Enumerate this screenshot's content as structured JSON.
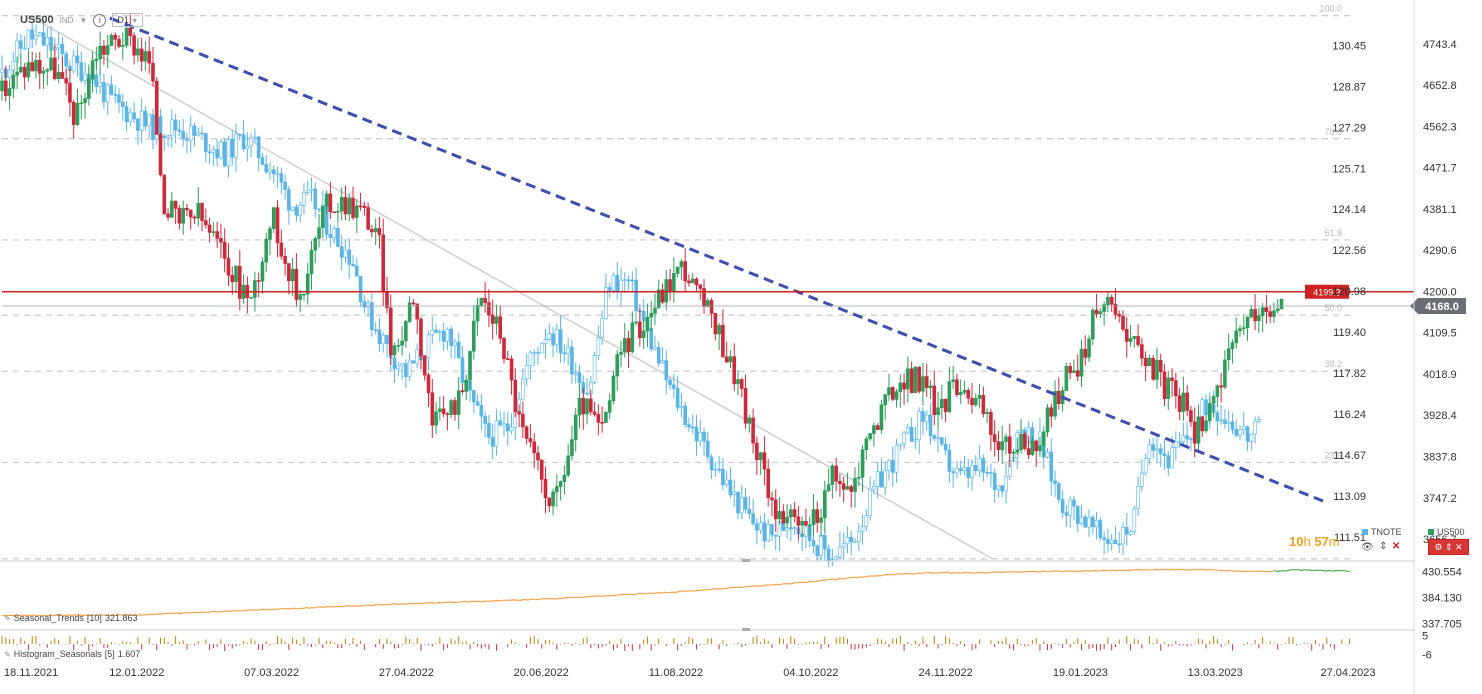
{
  "header": {
    "symbol": "US500",
    "instrument_type": "IND",
    "info_icon": "info-icon",
    "timeframe": "D1"
  },
  "colors": {
    "up": "#2e9c5a",
    "down": "#cc2a3a",
    "tnote": "#5ab4e6",
    "trendline": "#3f4eae",
    "resistance": "#cc2222",
    "fib": "#c8c8c8",
    "trend_orange": "#f4a34a",
    "last_price": "#6a6e76"
  },
  "legend": {
    "tnote_label": "TNOTE",
    "us500_label": "US500"
  },
  "timer": {
    "hours": "10",
    "h_unit": "h",
    "minutes": "57",
    "m_unit": "m"
  },
  "controls": {
    "eye_icon": "eye-icon",
    "arrows_icon": "up-down-arrows-icon",
    "close_icon": "close-icon",
    "settings_icon": "settings-icon"
  },
  "indicators": {
    "seasonal_trends": {
      "label": "Seasonal_Trends",
      "param": "[10]",
      "value": "321.863"
    },
    "histogram_seasonals": {
      "label": "Histogram_Seasonals",
      "param": "[5]",
      "value": "1.607"
    }
  },
  "chart_data": [
    {
      "type": "line",
      "title": "",
      "x_tick_labels": [
        "18.11.2021",
        "12.01.2022",
        "07.03.2022",
        "27.04.2022",
        "20.06.2022",
        "11.08.2022",
        "04.10.2022",
        "24.11.2022",
        "19.01.2023",
        "13.03.2023",
        "27.04.2023"
      ],
      "left_axis": {
        "ticks": [
          "130.45",
          "128.87",
          "127.29",
          "125.71",
          "124.14",
          "122.56",
          "120.98",
          "119.40",
          "117.82",
          "116.24",
          "114.67",
          "113.09",
          "111.51"
        ],
        "range": [
          110.7,
          131.5
        ]
      },
      "right_axis": {
        "ticks": [
          "4743.4",
          "4652.8",
          "4562.3",
          "4471.7",
          "4381.1",
          "4290.6",
          "4200.0",
          "4109.5",
          "4018.9",
          "3928.4",
          "3837.8",
          "3747.2",
          "3656.7"
        ],
        "range": [
          3615,
          4800
        ]
      },
      "fibonacci_levels": [
        {
          "label": "100.0",
          "price": 4805
        },
        {
          "label": "78.6",
          "price": 4535
        },
        {
          "label": "61.8",
          "price": 4313
        },
        {
          "label": "50.0",
          "price": 4148
        },
        {
          "label": "38.2",
          "price": 4025
        },
        {
          "label": "23.6",
          "price": 3825
        },
        {
          "label": "",
          "price": 3613
        }
      ],
      "resistance_line": {
        "price": 4199.3,
        "label": "4199.3"
      },
      "last_price": {
        "price": 4168.0,
        "label": "4168.0"
      },
      "trendline": {
        "from": {
          "x": 0.08,
          "price": 4800
        },
        "to": {
          "x": 0.98,
          "price": 3740
        }
      },
      "series": [
        {
          "name": "US500",
          "kind": "candlestick",
          "anchors": [
            [
              0.0,
              4640
            ],
            [
              0.02,
              4700
            ],
            [
              0.04,
              4690
            ],
            [
              0.055,
              4580
            ],
            [
              0.07,
              4730
            ],
            [
              0.09,
              4760
            ],
            [
              0.1,
              4740
            ],
            [
              0.11,
              4700
            ],
            [
              0.12,
              4400
            ],
            [
              0.13,
              4350
            ],
            [
              0.145,
              4370
            ],
            [
              0.16,
              4300
            ],
            [
              0.175,
              4220
            ],
            [
              0.185,
              4180
            ],
            [
              0.2,
              4370
            ],
            [
              0.22,
              4180
            ],
            [
              0.24,
              4390
            ],
            [
              0.255,
              4400
            ],
            [
              0.27,
              4370
            ],
            [
              0.28,
              4300
            ],
            [
              0.29,
              4040
            ],
            [
              0.305,
              4200
            ],
            [
              0.32,
              3900
            ],
            [
              0.34,
              3970
            ],
            [
              0.355,
              4190
            ],
            [
              0.37,
              4110
            ],
            [
              0.385,
              3900
            ],
            [
              0.4,
              3790
            ],
            [
              0.41,
              3730
            ],
            [
              0.43,
              3960
            ],
            [
              0.445,
              3890
            ],
            [
              0.46,
              4080
            ],
            [
              0.475,
              4130
            ],
            [
              0.49,
              4200
            ],
            [
              0.505,
              4260
            ],
            [
              0.515,
              4200
            ],
            [
              0.53,
              4120
            ],
            [
              0.545,
              4010
            ],
            [
              0.56,
              3840
            ],
            [
              0.575,
              3720
            ],
            [
              0.59,
              3680
            ],
            [
              0.605,
              3710
            ],
            [
              0.615,
              3790
            ],
            [
              0.63,
              3760
            ],
            [
              0.645,
              3900
            ],
            [
              0.665,
              4000
            ],
            [
              0.68,
              4010
            ],
            [
              0.695,
              3940
            ],
            [
              0.71,
              4010
            ],
            [
              0.725,
              3950
            ],
            [
              0.74,
              3860
            ],
            [
              0.755,
              3860
            ],
            [
              0.77,
              3870
            ],
            [
              0.785,
              3990
            ],
            [
              0.8,
              4050
            ],
            [
              0.815,
              4180
            ],
            [
              0.83,
              4150
            ],
            [
              0.84,
              4080
            ],
            [
              0.85,
              4060
            ],
            [
              0.86,
              4000
            ],
            [
              0.875,
              3960
            ],
            [
              0.885,
              3880
            ],
            [
              0.895,
              3960
            ],
            [
              0.905,
              4010
            ],
            [
              0.92,
              4120
            ],
            [
              0.93,
              4150
            ],
            [
              0.945,
              4150
            ],
            [
              0.952,
              4168
            ]
          ],
          "x_range": [
            0.0,
            0.952
          ]
        },
        {
          "name": "TNOTE",
          "kind": "candlestick",
          "anchors": [
            [
              0.0,
              4680
            ],
            [
              0.02,
              4760
            ],
            [
              0.035,
              4740
            ],
            [
              0.05,
              4700
            ],
            [
              0.065,
              4680
            ],
            [
              0.08,
              4620
            ],
            [
              0.095,
              4590
            ],
            [
              0.11,
              4560
            ],
            [
              0.13,
              4560
            ],
            [
              0.15,
              4530
            ],
            [
              0.165,
              4500
            ],
            [
              0.18,
              4540
            ],
            [
              0.2,
              4470
            ],
            [
              0.215,
              4390
            ],
            [
              0.23,
              4400
            ],
            [
              0.245,
              4330
            ],
            [
              0.26,
              4270
            ],
            [
              0.27,
              4160
            ],
            [
              0.285,
              4080
            ],
            [
              0.3,
              4020
            ],
            [
              0.315,
              4080
            ],
            [
              0.33,
              4120
            ],
            [
              0.345,
              3980
            ],
            [
              0.36,
              3880
            ],
            [
              0.375,
              3900
            ],
            [
              0.39,
              4040
            ],
            [
              0.405,
              4120
            ],
            [
              0.42,
              4060
            ],
            [
              0.435,
              3980
            ],
            [
              0.45,
              4220
            ],
            [
              0.465,
              4220
            ],
            [
              0.48,
              4100
            ],
            [
              0.495,
              3990
            ],
            [
              0.51,
              3910
            ],
            [
              0.525,
              3840
            ],
            [
              0.54,
              3760
            ],
            [
              0.555,
              3700
            ],
            [
              0.57,
              3660
            ],
            [
              0.585,
              3700
            ],
            [
              0.6,
              3660
            ],
            [
              0.615,
              3620
            ],
            [
              0.63,
              3650
            ],
            [
              0.65,
              3780
            ],
            [
              0.67,
              3870
            ],
            [
              0.685,
              3930
            ],
            [
              0.695,
              3850
            ],
            [
              0.71,
              3790
            ],
            [
              0.725,
              3810
            ],
            [
              0.74,
              3770
            ],
            [
              0.755,
              3900
            ],
            [
              0.77,
              3870
            ],
            [
              0.785,
              3740
            ],
            [
              0.8,
              3710
            ],
            [
              0.815,
              3660
            ],
            [
              0.83,
              3660
            ],
            [
              0.84,
              3700
            ],
            [
              0.85,
              3890
            ],
            [
              0.865,
              3830
            ],
            [
              0.88,
              3880
            ],
            [
              0.895,
              3960
            ],
            [
              0.91,
              3920
            ],
            [
              0.925,
              3880
            ],
            [
              0.935,
              3900
            ]
          ],
          "x_range": [
            0.0,
            0.935
          ]
        }
      ]
    },
    {
      "type": "line",
      "title": "Seasonal_Trends",
      "right_axis": {
        "ticks": [
          "430.554",
          "384.130",
          "337.705"
        ],
        "range": [
          330,
          440
        ]
      },
      "series": [
        {
          "name": "Seasonal_Trends",
          "anchors": [
            [
              0.0,
              352
            ],
            [
              0.1,
              353
            ],
            [
              0.2,
              363
            ],
            [
              0.3,
              373
            ],
            [
              0.4,
              381
            ],
            [
              0.5,
              394
            ],
            [
              0.58,
              408
            ],
            [
              0.63,
              419
            ],
            [
              0.66,
              425
            ],
            [
              0.69,
              428
            ],
            [
              0.72,
              428
            ],
            [
              0.76,
              430
            ],
            [
              0.8,
              431
            ],
            [
              0.84,
              433
            ],
            [
              0.87,
              434
            ],
            [
              0.9,
              433
            ],
            [
              0.92,
              430
            ],
            [
              0.945,
              431
            ],
            [
              0.96,
              433
            ],
            [
              0.975,
              432
            ],
            [
              1.0,
              431
            ]
          ]
        }
      ]
    },
    {
      "type": "bar",
      "title": "Histogram_Seasonals",
      "right_axis": {
        "ticks": [
          "5",
          "-6"
        ],
        "range": [
          -7,
          6
        ]
      }
    }
  ]
}
